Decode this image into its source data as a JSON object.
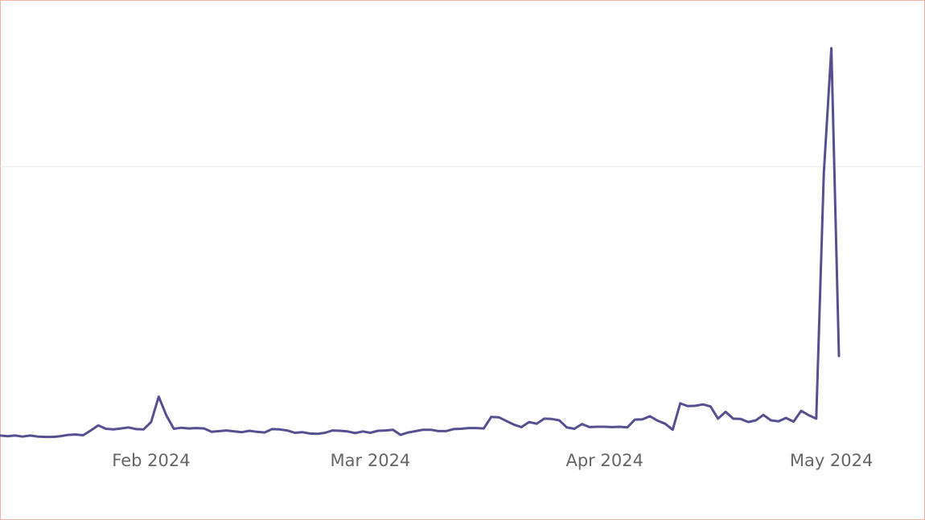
{
  "colors": {
    "series": "#565091",
    "frame_border": "#f0b3a3",
    "gridline": "#ececec",
    "tick_label": "#666666"
  },
  "chart_data": {
    "type": "line",
    "title": "",
    "xlabel": "",
    "ylabel": "",
    "x_ticks": [
      {
        "date": "2024-02-01",
        "label": "Feb 2024"
      },
      {
        "date": "2024-03-01",
        "label": "Mar 2024"
      },
      {
        "date": "2024-04-01",
        "label": "Apr 2024"
      },
      {
        "date": "2024-05-01",
        "label": "May 2024"
      }
    ],
    "x_range": [
      "2024-01-12",
      "2024-05-07"
    ],
    "ylim": [
      0,
      115
    ],
    "grid": {
      "y_values": [
        80
      ],
      "visible": true
    },
    "legend": "none",
    "series": [
      {
        "start_date": "2024-01-12",
        "values": [
          0.5,
          0.3,
          0.5,
          0.2,
          0.5,
          0.2,
          0.1,
          0.1,
          0.3,
          0.7,
          0.8,
          0.6,
          2.0,
          3.5,
          2.5,
          2.3,
          2.6,
          2.9,
          2.4,
          2.3,
          4.5,
          12,
          6.5,
          2.5,
          2.8,
          2.6,
          2.7,
          2.6,
          1.6,
          1.8,
          2.0,
          1.7,
          1.5,
          1.9,
          1.6,
          1.4,
          2.4,
          2.3,
          2.0,
          1.3,
          1.5,
          1.1,
          1.0,
          1.3,
          2.0,
          1.9,
          1.7,
          1.2,
          1.7,
          1.3,
          1.9,
          2.0,
          2.2,
          0.7,
          1.4,
          1.8,
          2.2,
          2.2,
          1.8,
          1.8,
          2.4,
          2.5,
          2.7,
          2.7,
          2.6,
          6.0,
          5.9,
          4.8,
          3.7,
          3.0,
          4.5,
          4.0,
          5.5,
          5.4,
          5.0,
          2.9,
          2.5,
          3.9,
          3.0,
          3.1,
          3.1,
          3.0,
          3.1,
          2.9,
          5.2,
          5.3,
          6.2,
          4.9,
          4.0,
          2.2,
          10.0,
          9.2,
          9.3,
          9.7,
          9.1,
          5.5,
          7.5,
          5.5,
          5.4,
          4.5,
          5.0,
          6.6,
          5.0,
          4.7,
          5.7,
          4.6,
          7.8,
          6.5,
          5.5,
          78,
          115,
          24
        ]
      }
    ]
  }
}
